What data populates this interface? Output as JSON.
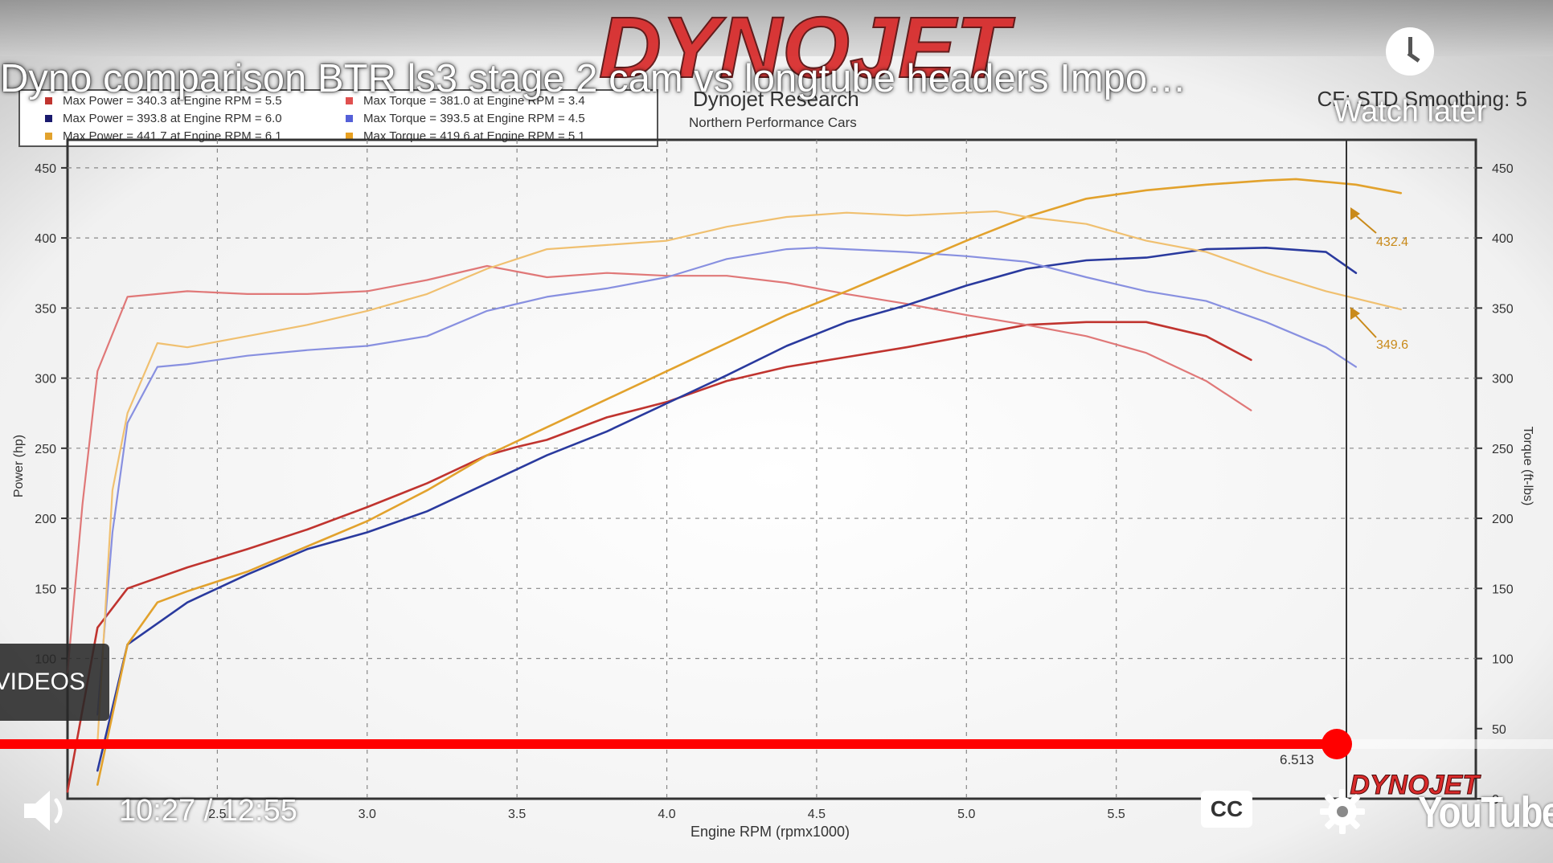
{
  "video": {
    "title": "Dyno comparison BTR ls3 stage 2 cam vs longtube headers Impo…",
    "watch_later_label": "Watch later",
    "videos_label": "VIDEOS",
    "time_current": "10:27",
    "time_separator": " / ",
    "time_total": "12:55",
    "progress": 0.861,
    "cc_label": "CC",
    "youtube_label": "YouTube",
    "icons": [
      "clock-icon",
      "volume-icon",
      "cc-icon",
      "settings-gear-icon",
      "youtube-logo"
    ]
  },
  "dyno": {
    "brand": "DYNOJET",
    "brand_footer": "DYNOJET",
    "company": "Dynojet Research",
    "shop": "Northern Performance Cars",
    "cf_text": "CF: STD Smoothing: 5",
    "cursor_rpm": "6.513",
    "colors": {
      "accent": "#d92a2a",
      "run1": "#c0342f",
      "run2": "#2a3a9e",
      "run3": "#e2a22d"
    },
    "legend": [
      {
        "power": "Max Power = 340.3 at Engine RPM = 5.5",
        "torque": "Max Torque = 381.0 at Engine RPM = 3.4",
        "power_color": "#c0342f",
        "torque_color": "#e0504f"
      },
      {
        "power": "Max Power = 393.8 at Engine RPM = 6.0",
        "torque": "Max Torque = 393.5 at Engine RPM = 4.5",
        "power_color": "#1a1a6e",
        "torque_color": "#5560d8"
      },
      {
        "power": "Max Power = 441.7 at Engine RPM = 6.1",
        "torque": "Max Torque = 419.6 at Engine RPM = 5.1",
        "power_color": "#e2a22d",
        "torque_color": "#e8a020"
      }
    ]
  },
  "chart_data": {
    "type": "line",
    "xlabel": "Engine RPM (rpmx1000)",
    "ylabel": "Power (hp)",
    "y2label": "Torque (ft-lbs)",
    "xlim": [
      2.0,
      6.7
    ],
    "ylim": [
      0,
      470
    ],
    "x_ticks": [
      "2.5",
      "3.0",
      "3.5",
      "4.0",
      "4.5",
      "5.0",
      "5.5"
    ],
    "y_ticks": [
      "100",
      "150",
      "200",
      "250",
      "300",
      "350",
      "400",
      "450"
    ],
    "y2_ticks": [
      "0",
      "50",
      "100",
      "150",
      "200",
      "250",
      "300",
      "350",
      "400",
      "450"
    ],
    "grid": true,
    "annotations": [
      "432.4",
      "349.6"
    ],
    "series": [
      {
        "name": "Max Power = 340.3",
        "color": "#c0342f",
        "width": 2.6,
        "x": [
          2.0,
          2.1,
          2.2,
          2.4,
          2.6,
          2.8,
          3.0,
          3.2,
          3.4,
          3.5,
          3.6,
          3.8,
          4.0,
          4.2,
          4.4,
          4.6,
          4.8,
          5.0,
          5.2,
          5.4,
          5.6,
          5.8,
          5.95
        ],
        "y": [
          5,
          122,
          150,
          165,
          178,
          192,
          208,
          225,
          245,
          251,
          256,
          272,
          283,
          298,
          308,
          315,
          322,
          330,
          338,
          340,
          340,
          330,
          313
        ]
      },
      {
        "name": "Max Torque = 381.0",
        "color": "#e07878",
        "width": 2.2,
        "x": [
          2.0,
          2.05,
          2.1,
          2.2,
          2.4,
          2.6,
          2.8,
          3.0,
          3.2,
          3.4,
          3.5,
          3.6,
          3.8,
          4.0,
          4.2,
          4.4,
          4.6,
          4.8,
          5.0,
          5.2,
          5.4,
          5.6,
          5.8,
          5.95
        ],
        "y": [
          90,
          210,
          305,
          358,
          362,
          360,
          360,
          362,
          370,
          380,
          376,
          372,
          375,
          373,
          373,
          368,
          360,
          353,
          345,
          338,
          330,
          318,
          298,
          277
        ]
      },
      {
        "name": "Max Power = 393.8",
        "color": "#2a3a9e",
        "width": 2.6,
        "x": [
          2.1,
          2.2,
          2.4,
          2.6,
          2.8,
          3.0,
          3.2,
          3.4,
          3.6,
          3.8,
          4.0,
          4.2,
          4.4,
          4.6,
          4.8,
          5.0,
          5.2,
          5.4,
          5.6,
          5.8,
          6.0,
          6.2,
          6.3
        ],
        "y": [
          20,
          110,
          140,
          160,
          178,
          190,
          205,
          225,
          245,
          262,
          282,
          302,
          323,
          340,
          352,
          366,
          378,
          384,
          386,
          392,
          393,
          390,
          375
        ]
      },
      {
        "name": "Max Torque = 393.5",
        "color": "#8890e0",
        "width": 2.2,
        "x": [
          2.1,
          2.15,
          2.2,
          2.3,
          2.4,
          2.6,
          2.8,
          3.0,
          3.2,
          3.4,
          3.6,
          3.8,
          4.0,
          4.2,
          4.4,
          4.5,
          4.6,
          4.8,
          5.0,
          5.2,
          5.4,
          5.6,
          5.8,
          6.0,
          6.2,
          6.3
        ],
        "y": [
          60,
          190,
          268,
          308,
          310,
          316,
          320,
          323,
          330,
          348,
          358,
          364,
          372,
          385,
          392,
          393,
          392,
          390,
          387,
          383,
          372,
          362,
          355,
          340,
          322,
          308
        ]
      },
      {
        "name": "Max Power = 441.7",
        "color": "#e2a22d",
        "width": 2.6,
        "x": [
          2.1,
          2.2,
          2.3,
          2.4,
          2.6,
          2.8,
          3.0,
          3.2,
          3.4,
          3.6,
          3.8,
          4.0,
          4.2,
          4.4,
          4.6,
          4.8,
          5.0,
          5.2,
          5.4,
          5.6,
          5.8,
          6.0,
          6.1,
          6.3,
          6.45
        ],
        "y": [
          10,
          110,
          140,
          148,
          162,
          180,
          198,
          220,
          245,
          265,
          285,
          305,
          325,
          345,
          362,
          380,
          398,
          415,
          428,
          434,
          438,
          441,
          442,
          438,
          432
        ]
      },
      {
        "name": "Max Torque = 419.6",
        "color": "#f0c070",
        "width": 2.2,
        "x": [
          2.1,
          2.15,
          2.2,
          2.3,
          2.4,
          2.6,
          2.8,
          3.0,
          3.2,
          3.4,
          3.6,
          3.8,
          4.0,
          4.2,
          4.4,
          4.6,
          4.8,
          5.0,
          5.1,
          5.2,
          5.4,
          5.6,
          5.8,
          6.0,
          6.2,
          6.45
        ],
        "y": [
          40,
          220,
          275,
          325,
          322,
          330,
          338,
          348,
          360,
          378,
          392,
          395,
          398,
          408,
          415,
          418,
          416,
          418,
          419,
          415,
          410,
          398,
          390,
          375,
          362,
          349
        ]
      }
    ]
  }
}
